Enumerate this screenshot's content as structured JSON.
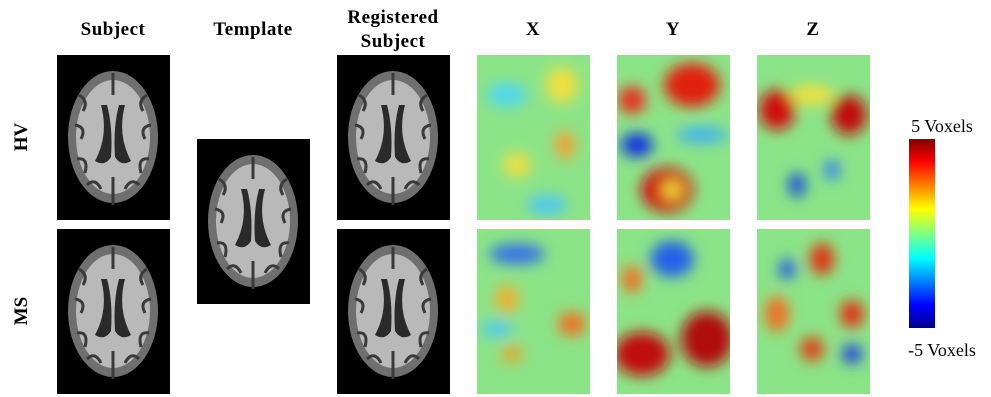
{
  "columns": [
    "Subject",
    "Template",
    "Registered Subject",
    "X",
    "Y",
    "Z"
  ],
  "rows": [
    "HV",
    "MS"
  ],
  "colorbar": {
    "max_label": "5 Voxels",
    "min_label": "-5 Voxels"
  }
}
